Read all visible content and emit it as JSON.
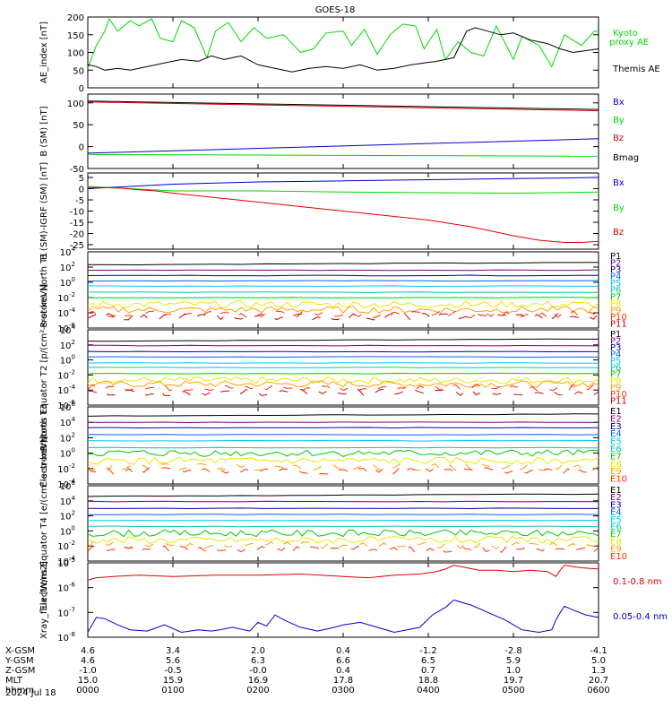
{
  "title": "GOES-18",
  "date_label": "2024 Jul 18",
  "colors": {
    "black": "#000000",
    "green": "#00d800",
    "blue": "#0000cc",
    "red": "#dd0000",
    "P": [
      "#000000",
      "#7a007a",
      "#0000aa",
      "#0060ff",
      "#00c8ff",
      "#00c8a0",
      "#00c800",
      "#e8e800",
      "#ffa000",
      "#ff3000",
      "#cc0000"
    ],
    "E": [
      "#000000",
      "#7a007a",
      "#0000aa",
      "#0060ff",
      "#00c8ff",
      "#00c8a0",
      "#00c800",
      "#e8e800",
      "#ffa000",
      "#ff3000",
      "#cc0000"
    ]
  },
  "ephemeris": {
    "row_labels": [
      "X-GSM",
      "Y-GSM",
      "Z-GSM",
      "MLT",
      "hhmm"
    ],
    "columns": [
      [
        "4.6",
        "4.6",
        "-1.0",
        "15.0",
        "0000"
      ],
      [
        "3.4",
        "5.6",
        "-0.5",
        "15.9",
        "0100"
      ],
      [
        "2.0",
        "6.3",
        "-0.0",
        "16.9",
        "0200"
      ],
      [
        "0.4",
        "6.6",
        "0.4",
        "17.8",
        "0300"
      ],
      [
        "-1.2",
        "6.5",
        "0.7",
        "18.8",
        "0400"
      ],
      [
        "-2.8",
        "5.9",
        "1.0",
        "19.7",
        "0500"
      ],
      [
        "-4.1",
        "5.0",
        "1.3",
        "20.7",
        "0600"
      ]
    ]
  },
  "chart_data": [
    {
      "type": "line",
      "ylabel": "AE_index [nT]",
      "yscale": "linear",
      "ylim": [
        0,
        200
      ],
      "yticks": [
        "0",
        "50",
        "100",
        "150",
        "200"
      ],
      "x_range": [
        0,
        6
      ],
      "x_unit": "hours UT",
      "series": [
        {
          "name": "Kyoto proxy AE",
          "legend": [
            "Kyoto",
            "proxy AE"
          ],
          "color": "#00d800",
          "x": [
            0,
            0.1,
            0.2,
            0.25,
            0.35,
            0.5,
            0.6,
            0.75,
            0.85,
            1.0,
            1.1,
            1.25,
            1.4,
            1.5,
            1.65,
            1.8,
            1.95,
            2.1,
            2.3,
            2.5,
            2.65,
            2.8,
            3.0,
            3.1,
            3.25,
            3.4,
            3.55,
            3.7,
            3.85,
            3.95,
            4.1,
            4.2,
            4.35,
            4.5,
            4.65,
            4.8,
            5.0,
            5.1,
            5.3,
            5.45,
            5.6,
            5.8,
            5.95,
            6.0
          ],
          "values": [
            55,
            120,
            160,
            195,
            160,
            190,
            175,
            195,
            140,
            130,
            190,
            170,
            85,
            160,
            185,
            130,
            170,
            140,
            150,
            100,
            110,
            155,
            160,
            120,
            165,
            95,
            150,
            180,
            175,
            110,
            165,
            80,
            130,
            100,
            90,
            175,
            80,
            145,
            120,
            60,
            150,
            120,
            160,
            160
          ]
        },
        {
          "name": "Themis AE",
          "legend": [
            "Themis AE"
          ],
          "color": "#000000",
          "x": [
            0,
            0.1,
            0.2,
            0.35,
            0.5,
            0.7,
            0.9,
            1.1,
            1.3,
            1.45,
            1.6,
            1.8,
            2.0,
            2.2,
            2.4,
            2.6,
            2.8,
            3.0,
            3.2,
            3.4,
            3.6,
            3.8,
            3.95,
            4.1,
            4.3,
            4.45,
            4.55,
            4.7,
            4.85,
            5.0,
            5.2,
            5.4,
            5.55,
            5.7,
            5.85,
            6.0
          ],
          "values": [
            65,
            60,
            50,
            55,
            50,
            60,
            70,
            80,
            75,
            90,
            80,
            90,
            65,
            55,
            45,
            55,
            60,
            55,
            65,
            50,
            55,
            65,
            70,
            75,
            85,
            160,
            170,
            160,
            150,
            155,
            135,
            125,
            110,
            100,
            105,
            110
          ]
        }
      ]
    },
    {
      "type": "line",
      "ylabel": "B (SM) [nT]",
      "yscale": "linear",
      "ylim": [
        -50,
        120
      ],
      "yticks": [
        "-50",
        "0",
        "50",
        "100"
      ],
      "series": [
        {
          "name": "Bx",
          "color": "#0000cc",
          "x": [
            0,
            6
          ],
          "values": [
            -15,
            18
          ]
        },
        {
          "name": "By",
          "color": "#00d800",
          "x": [
            0,
            6
          ],
          "values": [
            -18,
            -22
          ]
        },
        {
          "name": "Bz",
          "color": "#dd0000",
          "x": [
            0,
            6
          ],
          "values": [
            102,
            82
          ]
        },
        {
          "name": "Bmag",
          "color": "#000000",
          "x": [
            0,
            6
          ],
          "values": [
            104,
            85
          ]
        }
      ]
    },
    {
      "type": "line",
      "ylabel": "B (SM)-IGRF (SM) [nT]",
      "yscale": "linear",
      "ylim": [
        -27,
        7
      ],
      "yticks": [
        "5",
        "0",
        "-5",
        "-10",
        "-15",
        "-20",
        "-25"
      ],
      "series": [
        {
          "name": "Bx",
          "color": "#0000cc",
          "x": [
            0,
            1,
            2,
            3,
            4,
            5,
            6
          ],
          "values": [
            0,
            2,
            3,
            3.5,
            4,
            4.5,
            5
          ]
        },
        {
          "name": "By",
          "color": "#00d800",
          "x": [
            0,
            1,
            2,
            3,
            4,
            5,
            6
          ],
          "values": [
            1,
            -1,
            -1,
            -1.5,
            -1.8,
            -2,
            -1.5
          ]
        },
        {
          "name": "Bz",
          "color": "#dd0000",
          "x": [
            0,
            0.2,
            0.4,
            0.6,
            0.8,
            1.0,
            1.5,
            2.0,
            2.5,
            3.0,
            3.5,
            4.0,
            4.5,
            5.0,
            5.3,
            5.6,
            5.8,
            6.0
          ],
          "values": [
            0.5,
            0.5,
            0.2,
            -0.5,
            -1,
            -2,
            -4,
            -6,
            -8,
            -10,
            -12,
            -14,
            -17,
            -21,
            -23,
            -24,
            -24,
            -23.5
          ]
        }
      ]
    },
    {
      "type": "line",
      "ylabel": "Protons North T1",
      "yscale": "log",
      "ylim_exp": [
        -6,
        4
      ],
      "ytick_exps": [
        -6,
        -4,
        -2,
        0,
        2,
        4
      ],
      "legend": [
        "P1",
        "P2",
        "P3",
        "P4",
        "P5",
        "P6",
        "P7",
        "P8",
        "P9",
        "P10",
        "P11"
      ],
      "levels_exp": [
        2.3,
        1.6,
        0.9,
        0.2,
        -0.5,
        -1.3,
        -2.0,
        -2.9,
        -3.6,
        -4.2,
        -4.5
      ]
    },
    {
      "type": "line",
      "ylabel": "Protons Equator T2 [p/(cm²-s-sr-keV)]",
      "yscale": "log",
      "ylim_exp": [
        -6,
        4
      ],
      "ytick_exps": [
        -6,
        -4,
        -2,
        0,
        2,
        4
      ],
      "legend": [
        "P1",
        "P2",
        "P3",
        "P4",
        "P5",
        "P6",
        "P7",
        "P8",
        "P9",
        "P10",
        "P11"
      ],
      "levels_exp": [
        2.5,
        1.9,
        1.1,
        0.4,
        -0.4,
        -1.0,
        -1.8,
        -2.7,
        -3.2,
        -3.7,
        -4.3
      ]
    },
    {
      "type": "line",
      "ylabel": "Electrons North T3",
      "yscale": "log",
      "ylim_exp": [
        -4,
        6
      ],
      "ytick_exps": [
        -4,
        -2,
        0,
        2,
        4,
        6
      ],
      "legend": [
        "E1",
        "E2",
        "E3",
        "E4",
        "E5",
        "E6",
        "E7",
        "E8",
        "E9",
        "E10"
      ],
      "levels_exp": [
        4.8,
        4.0,
        3.3,
        2.4,
        1.6,
        0.7,
        0.0,
        -1.0,
        -1.8,
        -2.3
      ]
    },
    {
      "type": "line",
      "ylabel": "Electrons Equator T4 [e/(cm²-s-sr-keV)]",
      "yscale": "log",
      "ylim_exp": [
        -4,
        6
      ],
      "ytick_exps": [
        -4,
        -2,
        0,
        2,
        4,
        6
      ],
      "legend": [
        "E1",
        "E2",
        "E3",
        "E4",
        "E5",
        "E6",
        "E7",
        "E8",
        "E9",
        "E10"
      ],
      "levels_exp": [
        4.6,
        3.9,
        3.0,
        2.2,
        1.4,
        0.6,
        -0.3,
        -1.2,
        -1.9,
        -2.4
      ]
    },
    {
      "type": "line",
      "ylabel": "Xray_flux [W/m2]",
      "yscale": "log",
      "ylim_exp": [
        -8,
        -5
      ],
      "ytick_exps": [
        -8,
        -7,
        -6,
        -5
      ],
      "series": [
        {
          "name": "0.1-0.8 nm",
          "color": "#dd0000",
          "x": [
            0,
            0.1,
            0.3,
            0.6,
            1.0,
            1.5,
            2.0,
            2.5,
            3.0,
            3.3,
            3.6,
            3.9,
            4.1,
            4.2,
            4.3,
            4.45,
            4.6,
            4.8,
            5.0,
            5.2,
            5.4,
            5.5,
            5.56,
            5.6,
            5.8,
            6.0
          ],
          "values": [
            -5.7,
            -5.6,
            -5.55,
            -5.5,
            -5.55,
            -5.5,
            -5.5,
            -5.45,
            -5.55,
            -5.6,
            -5.5,
            -5.45,
            -5.35,
            -5.25,
            -5.1,
            -5.2,
            -5.3,
            -5.3,
            -5.35,
            -5.3,
            -5.35,
            -5.55,
            -5.25,
            -5.1,
            -5.2,
            -5.25
          ]
        },
        {
          "name": "0.05-0.4 nm",
          "color": "#0000cc",
          "x": [
            0,
            0.1,
            0.2,
            0.35,
            0.5,
            0.7,
            0.9,
            1.1,
            1.3,
            1.45,
            1.55,
            1.7,
            1.9,
            2.0,
            2.1,
            2.2,
            2.3,
            2.5,
            2.7,
            2.9,
            3.0,
            3.2,
            3.4,
            3.6,
            3.75,
            3.9,
            4.05,
            4.2,
            4.3,
            4.5,
            4.7,
            4.9,
            5.1,
            5.3,
            5.45,
            5.5,
            5.55,
            5.6,
            5.7,
            5.85,
            6.0
          ],
          "values": [
            -7.8,
            -7.2,
            -7.25,
            -7.5,
            -7.7,
            -7.75,
            -7.5,
            -7.8,
            -7.7,
            -7.75,
            -7.7,
            -7.6,
            -7.75,
            -7.4,
            -7.55,
            -7.1,
            -7.3,
            -7.6,
            -7.75,
            -7.6,
            -7.5,
            -7.4,
            -7.6,
            -7.8,
            -7.7,
            -7.6,
            -7.1,
            -6.8,
            -6.5,
            -6.7,
            -7.0,
            -7.3,
            -7.7,
            -7.8,
            -7.7,
            -7.3,
            -7.0,
            -6.75,
            -6.9,
            -7.1,
            -7.2
          ]
        }
      ]
    }
  ]
}
